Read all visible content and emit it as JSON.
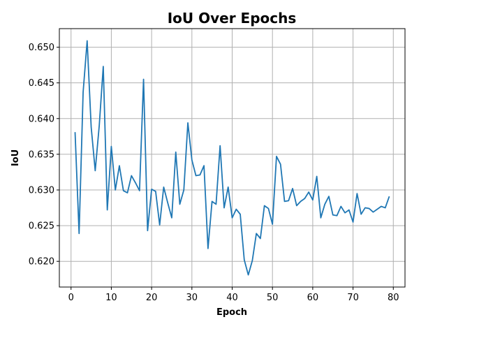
{
  "chart_data": {
    "type": "line",
    "title": "IoU Over Epochs",
    "xlabel": "Epoch",
    "ylabel": "IoU",
    "xlim": [
      -2.9,
      82.9
    ],
    "ylim": [
      0.6164,
      0.6526
    ],
    "xticks": [
      0,
      10,
      20,
      30,
      40,
      50,
      60,
      70,
      80
    ],
    "yticks": [
      0.62,
      0.625,
      0.63,
      0.635,
      0.64,
      0.645,
      0.65
    ],
    "xtick_labels": [
      "0",
      "10",
      "20",
      "30",
      "40",
      "50",
      "60",
      "70",
      "80"
    ],
    "ytick_labels": [
      "0.620",
      "0.625",
      "0.630",
      "0.635",
      "0.640",
      "0.645",
      "0.650"
    ],
    "grid": true,
    "color": "#1f77b4",
    "series": [
      {
        "x": [
          1,
          2,
          3,
          4,
          5,
          6,
          7,
          8,
          9,
          10,
          11,
          12,
          13,
          14,
          15,
          16,
          17,
          18,
          19,
          20,
          21,
          22,
          23,
          24,
          25,
          26,
          27,
          28,
          29,
          30,
          31,
          32,
          33,
          34,
          35,
          36,
          37,
          38,
          39,
          40,
          41,
          42,
          43,
          44,
          45,
          46,
          47,
          48,
          49,
          50,
          51,
          52,
          53,
          54,
          55,
          56,
          57,
          58,
          59,
          60,
          61,
          62,
          63,
          64,
          65,
          66,
          67,
          68,
          69,
          70,
          71,
          72,
          73,
          74,
          75,
          76,
          77,
          78,
          79
        ],
        "values": [
          0.6381,
          0.6239,
          0.6437,
          0.6509,
          0.6388,
          0.6327,
          0.639,
          0.6473,
          0.6272,
          0.6361,
          0.63,
          0.6334,
          0.6299,
          0.6296,
          0.632,
          0.631,
          0.6299,
          0.6455,
          0.6243,
          0.6301,
          0.6298,
          0.6251,
          0.6304,
          0.6282,
          0.6261,
          0.6353,
          0.628,
          0.63,
          0.6394,
          0.6342,
          0.632,
          0.6321,
          0.6334,
          0.6218,
          0.6284,
          0.628,
          0.6362,
          0.6275,
          0.6304,
          0.6261,
          0.6273,
          0.6266,
          0.6202,
          0.6181,
          0.6201,
          0.6239,
          0.6232,
          0.6278,
          0.6274,
          0.6252,
          0.6347,
          0.6336,
          0.6284,
          0.6285,
          0.6302,
          0.6278,
          0.6284,
          0.6288,
          0.6297,
          0.6286,
          0.6319,
          0.6261,
          0.628,
          0.6291,
          0.6265,
          0.6264,
          0.6277,
          0.6268,
          0.6272,
          0.6255,
          0.6295,
          0.6266,
          0.6275,
          0.6274,
          0.6269,
          0.6273,
          0.6277,
          0.6275,
          0.6291
        ]
      }
    ]
  }
}
